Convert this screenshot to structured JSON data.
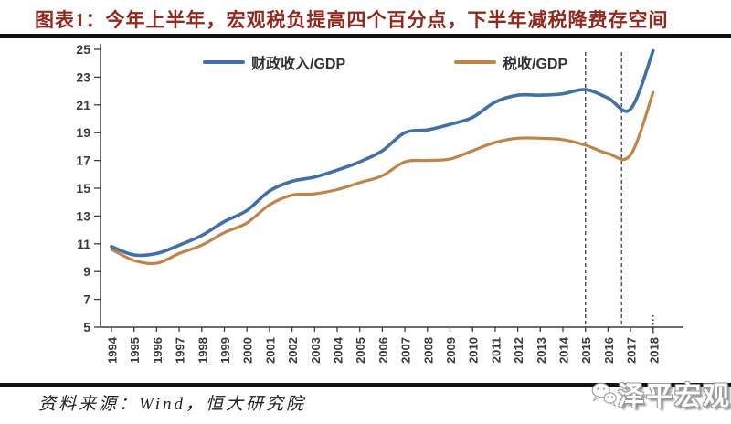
{
  "title": "图表1：今年上半年，宏观税负提高四个百分点，下半年减税降费存空间",
  "source_note": "资料来源：Wind，恒大研究院",
  "watermark": {
    "icon": "chat-bubbles-icon",
    "text": "泽平宏观"
  },
  "colors": {
    "title_text": "#93291E",
    "rule": "#111111",
    "axis": "#3A3A3A",
    "tick_label": "#3A3A3A",
    "dashed_line": "#4A4A4A",
    "fiscal": "#4170A6",
    "tax": "#C08448"
  },
  "chart_data": {
    "type": "line",
    "x": [
      1994,
      1995,
      1996,
      1997,
      1998,
      1999,
      2000,
      2001,
      2002,
      2003,
      2004,
      2005,
      2006,
      2007,
      2008,
      2009,
      2010,
      2011,
      2012,
      2013,
      2014,
      2015,
      2016,
      2017,
      2018
    ],
    "series": [
      {
        "name": "财政收入/GDP",
        "color": "#4170A6",
        "values": [
          10.8,
          10.2,
          10.3,
          10.9,
          11.6,
          12.6,
          13.4,
          14.8,
          15.5,
          15.8,
          16.3,
          16.9,
          17.7,
          19.0,
          19.2,
          19.6,
          20.1,
          21.2,
          21.7,
          21.7,
          21.8,
          22.1,
          21.5,
          20.7,
          24.9
        ]
      },
      {
        "name": "税收/GDP",
        "color": "#C08448",
        "values": [
          10.6,
          9.8,
          9.6,
          10.3,
          10.9,
          11.8,
          12.5,
          13.8,
          14.5,
          14.6,
          14.9,
          15.4,
          15.9,
          16.9,
          17.0,
          17.1,
          17.7,
          18.3,
          18.6,
          18.6,
          18.5,
          18.1,
          17.5,
          17.4,
          21.9
        ]
      }
    ],
    "ylim": [
      5,
      25
    ],
    "yticks": [
      5,
      7,
      9,
      11,
      13,
      15,
      17,
      19,
      21,
      23,
      25
    ],
    "grid": false,
    "legend_position": "top",
    "annotations": {
      "dashed_vlines_x": [
        2015,
        2016.6
      ],
      "dotted_tick_x": 2018
    }
  }
}
